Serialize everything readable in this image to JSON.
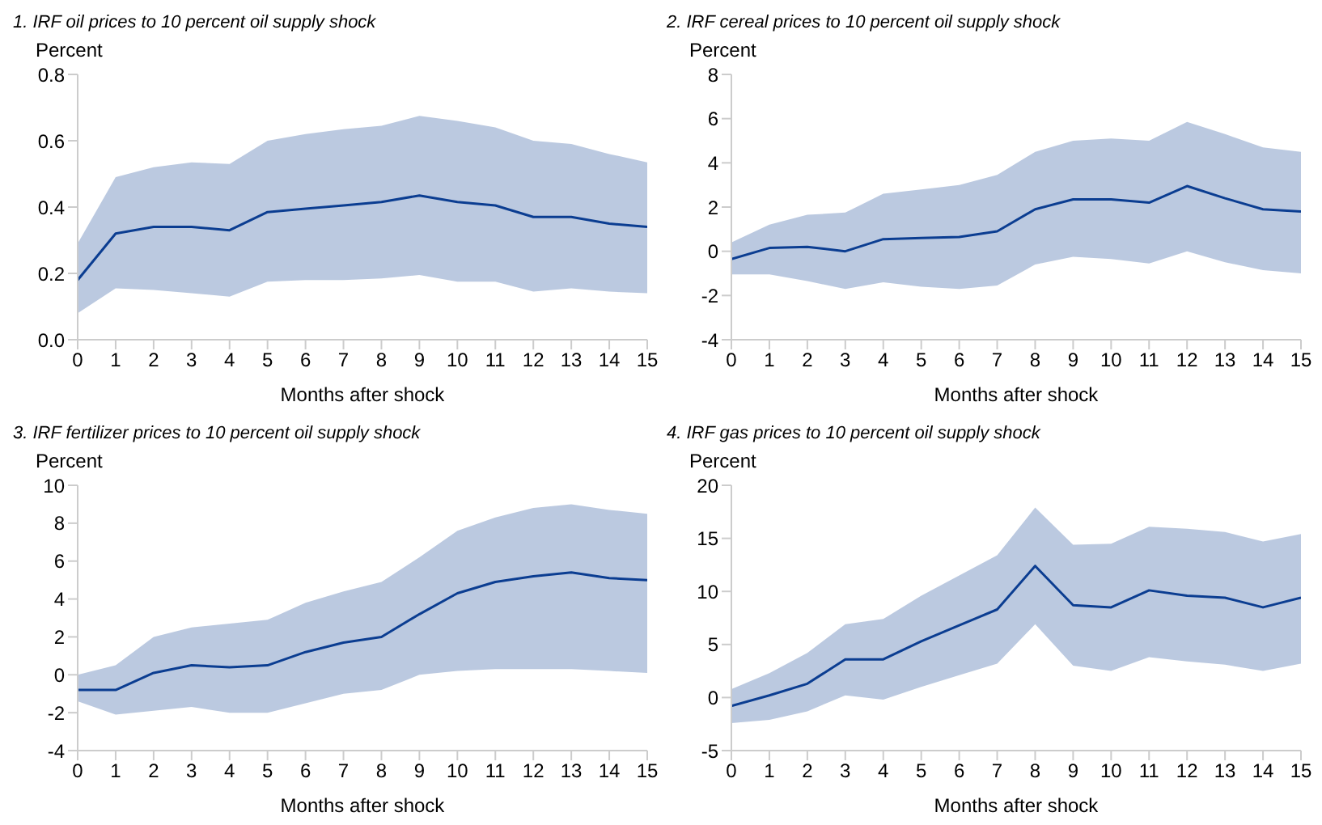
{
  "chart_data": [
    {
      "type": "line",
      "title": "1.  IRF oil prices to 10 percent oil supply shock",
      "ylabel": "Percent",
      "xlabel": "Months after shock",
      "x": [
        0,
        1,
        2,
        3,
        4,
        5,
        6,
        7,
        8,
        9,
        10,
        11,
        12,
        13,
        14,
        15
      ],
      "xlim": [
        0,
        15
      ],
      "xticks": [
        0,
        1,
        2,
        3,
        4,
        5,
        6,
        7,
        8,
        9,
        10,
        11,
        12,
        13,
        14,
        15
      ],
      "ylim": [
        0,
        0.8
      ],
      "yticks": [
        {
          "value": 0,
          "label": "0.0"
        },
        0.2,
        0.4,
        0.6,
        0.8
      ],
      "grid": false,
      "legend": false,
      "series": [
        {
          "color": "#0b3d91",
          "values": [
            0.18,
            0.32,
            0.34,
            0.34,
            0.33,
            0.385,
            0.395,
            0.405,
            0.415,
            0.435,
            0.415,
            0.405,
            0.37,
            0.37,
            0.35,
            0.34
          ],
          "lower": [
            0.08,
            0.155,
            0.15,
            0.14,
            0.13,
            0.175,
            0.18,
            0.18,
            0.185,
            0.195,
            0.175,
            0.175,
            0.145,
            0.155,
            0.145,
            0.14
          ],
          "upper": [
            0.29,
            0.49,
            0.52,
            0.535,
            0.53,
            0.6,
            0.62,
            0.635,
            0.645,
            0.675,
            0.66,
            0.64,
            0.6,
            0.59,
            0.56,
            0.535
          ]
        }
      ]
    },
    {
      "type": "line",
      "title": "2.  IRF cereal prices to 10 percent oil supply shock",
      "ylabel": "Percent",
      "xlabel": "Months after shock",
      "x": [
        0,
        1,
        2,
        3,
        4,
        5,
        6,
        7,
        8,
        9,
        10,
        11,
        12,
        13,
        14,
        15
      ],
      "xlim": [
        0,
        15
      ],
      "xticks": [
        0,
        1,
        2,
        3,
        4,
        5,
        6,
        7,
        8,
        9,
        10,
        11,
        12,
        13,
        14,
        15
      ],
      "ylim": [
        -4,
        8
      ],
      "yticks": [
        -4,
        -2,
        0,
        2,
        4,
        6,
        8
      ],
      "grid": false,
      "legend": false,
      "series": [
        {
          "color": "#0b3d91",
          "values": [
            -0.35,
            0.15,
            0.2,
            0,
            0.55,
            0.6,
            0.65,
            0.9,
            1.9,
            2.35,
            2.35,
            2.2,
            2.95,
            2.4,
            1.9,
            1.8
          ],
          "lower": [
            -1.05,
            -1.05,
            -1.35,
            -1.7,
            -1.4,
            -1.6,
            -1.7,
            -1.55,
            -0.6,
            -0.25,
            -0.35,
            -0.55,
            0,
            -0.5,
            -0.85,
            -1.0
          ],
          "upper": [
            0.4,
            1.2,
            1.65,
            1.75,
            2.6,
            2.8,
            3.0,
            3.45,
            4.5,
            5.0,
            5.1,
            5.0,
            5.85,
            5.3,
            4.7,
            4.5
          ]
        }
      ]
    },
    {
      "type": "line",
      "title": "3.  IRF fertilizer prices to 10 percent oil supply shock",
      "ylabel": "Percent",
      "xlabel": "Months after shock",
      "x": [
        0,
        1,
        2,
        3,
        4,
        5,
        6,
        7,
        8,
        9,
        10,
        11,
        12,
        13,
        14,
        15
      ],
      "xlim": [
        0,
        15
      ],
      "xticks": [
        0,
        1,
        2,
        3,
        4,
        5,
        6,
        7,
        8,
        9,
        10,
        11,
        12,
        13,
        14,
        15
      ],
      "ylim": [
        -4,
        10
      ],
      "yticks": [
        -4,
        -2,
        0,
        2,
        4,
        6,
        8,
        10
      ],
      "grid": false,
      "legend": false,
      "series": [
        {
          "color": "#0b3d91",
          "values": [
            -0.8,
            -0.8,
            0.1,
            0.5,
            0.4,
            0.5,
            1.2,
            1.7,
            2.0,
            3.2,
            4.3,
            4.9,
            5.2,
            5.4,
            5.1,
            5.0
          ],
          "lower": [
            -1.4,
            -2.1,
            -1.9,
            -1.7,
            -2.0,
            -2.0,
            -1.5,
            -1.0,
            -0.8,
            0,
            0.2,
            0.3,
            0.3,
            0.3,
            0.2,
            0.1
          ],
          "upper": [
            0,
            0.5,
            2.0,
            2.5,
            2.7,
            2.9,
            3.8,
            4.4,
            4.9,
            6.2,
            7.6,
            8.3,
            8.8,
            9.0,
            8.7,
            8.5
          ]
        }
      ]
    },
    {
      "type": "line",
      "title": "4.  IRF gas prices to 10 percent oil supply shock",
      "ylabel": "Percent",
      "xlabel": "Months after shock",
      "x": [
        0,
        1,
        2,
        3,
        4,
        5,
        6,
        7,
        8,
        9,
        10,
        11,
        12,
        13,
        14,
        15
      ],
      "xlim": [
        0,
        15
      ],
      "xticks": [
        0,
        1,
        2,
        3,
        4,
        5,
        6,
        7,
        8,
        9,
        10,
        11,
        12,
        13,
        14,
        15
      ],
      "ylim": [
        -5,
        20
      ],
      "yticks": [
        -5,
        0,
        5,
        10,
        15,
        20
      ],
      "grid": false,
      "legend": false,
      "series": [
        {
          "color": "#0b3d91",
          "values": [
            -0.8,
            0.2,
            1.3,
            3.6,
            3.6,
            5.3,
            6.8,
            8.3,
            12.4,
            8.7,
            8.5,
            10.1,
            9.6,
            9.4,
            8.5,
            9.4
          ],
          "lower": [
            -2.4,
            -2.1,
            -1.3,
            0.2,
            -0.2,
            1.0,
            2.1,
            3.2,
            6.9,
            3.0,
            2.5,
            3.8,
            3.4,
            3.1,
            2.5,
            3.2
          ],
          "upper": [
            0.8,
            2.3,
            4.2,
            6.9,
            7.4,
            9.6,
            11.5,
            13.4,
            17.9,
            14.4,
            14.5,
            16.1,
            15.9,
            15.6,
            14.7,
            15.4
          ]
        }
      ]
    }
  ]
}
